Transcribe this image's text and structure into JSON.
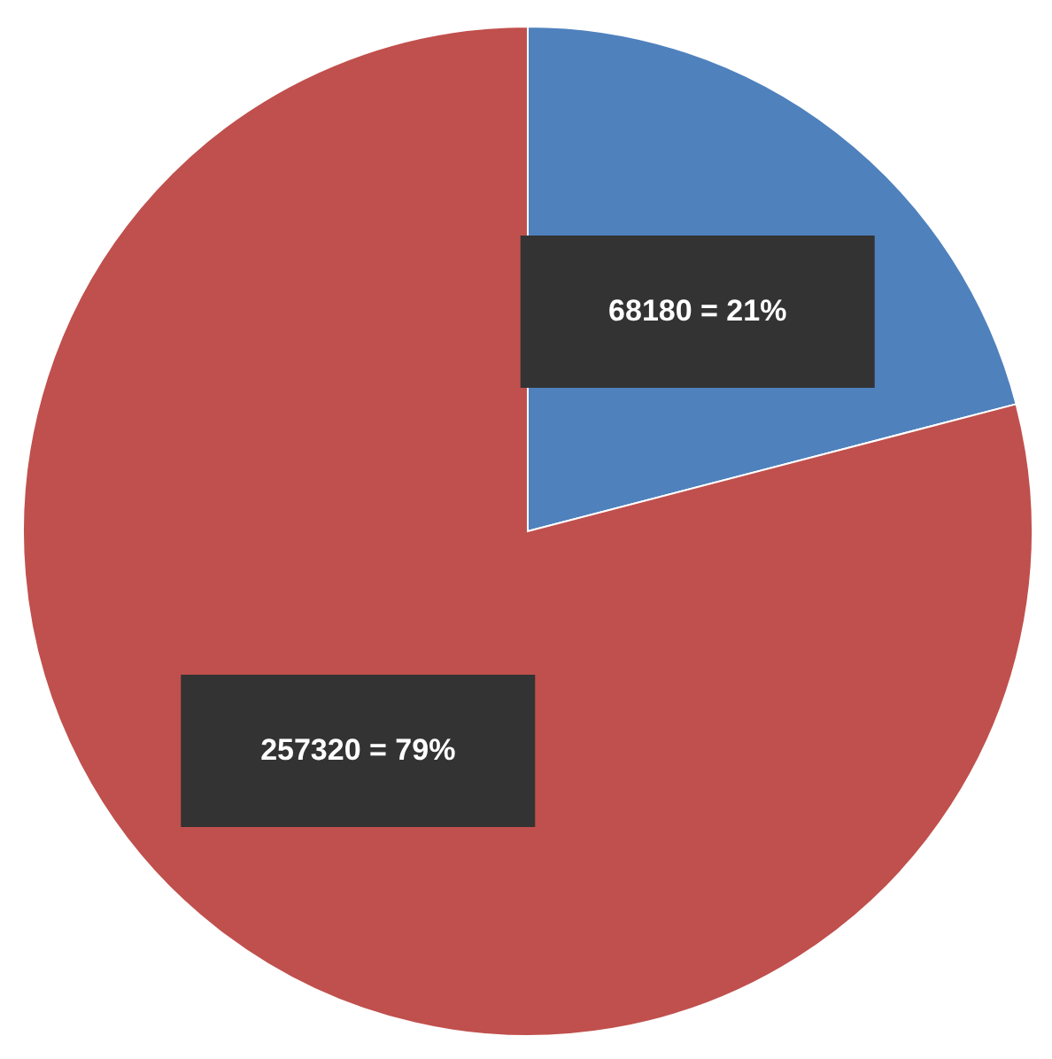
{
  "chart_data": {
    "type": "pie",
    "categories": [
      null,
      null
    ],
    "values": [
      68180,
      257320
    ],
    "colors": [
      "#4f81bd",
      "#c0504d"
    ],
    "value_labels": [
      "68180 = 21%",
      "257320 = 79%"
    ]
  }
}
